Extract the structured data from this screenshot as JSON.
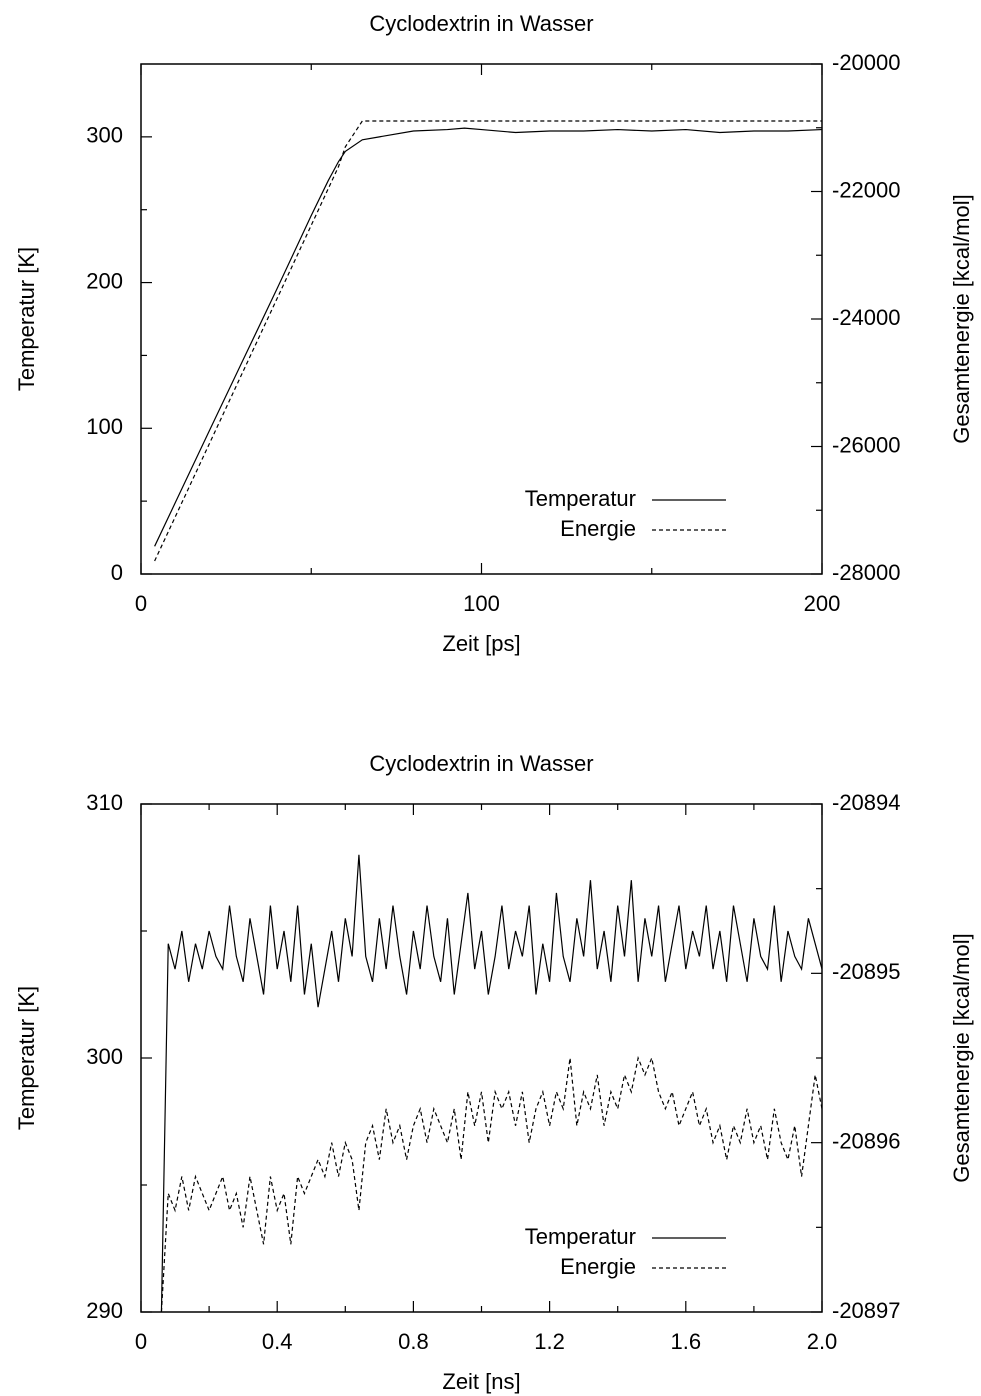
{
  "chart_data": [
    {
      "type": "line",
      "title": "Cyclodextrin in Wasser",
      "xlabel": "Zeit [ps]",
      "ylabel": "Temperatur [K]",
      "y2label": "Gesamtenergie [kcal/mol]",
      "x": [
        4,
        10,
        20,
        30,
        40,
        50,
        55,
        58,
        60,
        65,
        70,
        80,
        90,
        95,
        100,
        110,
        120,
        130,
        140,
        150,
        160,
        170,
        180,
        190,
        200
      ],
      "series": [
        {
          "name": "Temperatur",
          "color": "#000000",
          "dash": "solid",
          "values": [
            19,
            48.6,
            98,
            147,
            196,
            246,
            270,
            283,
            290,
            298,
            300,
            304,
            305,
            306,
            305,
            303,
            304,
            304,
            305,
            304,
            305,
            303,
            304,
            304,
            305
          ]
        },
        {
          "name": "Energie",
          "color": "#000000",
          "dash": "dashed",
          "axis": "y2",
          "values": [
            -27796,
            -27110,
            -25965,
            -24820,
            -23675,
            -22530,
            -21955,
            -21610,
            -21300,
            -20894,
            -20894,
            -20894,
            -20894,
            -20894,
            -20894,
            -20894,
            -20894,
            -20894,
            -20894,
            -20894,
            -20894,
            -20894,
            -20894,
            -20894,
            -20894
          ]
        }
      ],
      "xlim": [
        0,
        200
      ],
      "xticks": [
        0,
        100,
        200
      ],
      "xminorticks": [
        50,
        150
      ],
      "ylim": [
        0,
        350
      ],
      "yticks": [
        0,
        100,
        200,
        300
      ],
      "yminorticks": [
        50,
        150,
        250
      ],
      "y2lim": [
        -28000,
        -20000
      ],
      "y2ticks": [
        -28000,
        -26000,
        -24000,
        -22000,
        -20000
      ],
      "y2minorticks": [
        -27000,
        -25000,
        -23000,
        -21000
      ],
      "grid": false,
      "legend": "lower right"
    },
    {
      "type": "line",
      "title": "Cyclodextrin in Wasser",
      "xlabel": "Zeit [ns]",
      "ylabel": "Temperatur [K]",
      "y2label": "Gesamtenergie [kcal/mol]",
      "x": [
        0.06,
        0.08,
        0.1,
        0.12,
        0.14,
        0.16,
        0.18,
        0.2,
        0.22,
        0.24,
        0.26,
        0.28,
        0.3,
        0.32,
        0.34,
        0.36,
        0.38,
        0.4,
        0.42,
        0.44,
        0.46,
        0.48,
        0.5,
        0.52,
        0.54,
        0.56,
        0.58,
        0.6,
        0.62,
        0.64,
        0.66,
        0.68,
        0.7,
        0.72,
        0.74,
        0.76,
        0.78,
        0.8,
        0.82,
        0.84,
        0.86,
        0.88,
        0.9,
        0.92,
        0.94,
        0.96,
        0.98,
        1.0,
        1.02,
        1.04,
        1.06,
        1.08,
        1.1,
        1.12,
        1.14,
        1.16,
        1.18,
        1.2,
        1.22,
        1.24,
        1.26,
        1.28,
        1.3,
        1.32,
        1.34,
        1.36,
        1.38,
        1.4,
        1.42,
        1.44,
        1.46,
        1.48,
        1.5,
        1.52,
        1.54,
        1.56,
        1.58,
        1.6,
        1.62,
        1.64,
        1.66,
        1.68,
        1.7,
        1.72,
        1.74,
        1.76,
        1.78,
        1.8,
        1.82,
        1.84,
        1.86,
        1.88,
        1.9,
        1.92,
        1.94,
        1.96,
        1.98,
        2.0
      ],
      "series": [
        {
          "name": "Temperatur",
          "color": "#000000",
          "dash": "solid",
          "values": [
            290,
            304.5,
            303.5,
            305,
            303,
            304.5,
            303.5,
            305,
            304,
            303.5,
            306,
            304,
            303,
            305.5,
            304,
            302.5,
            306,
            303.5,
            305,
            303,
            306,
            302.5,
            304.5,
            302,
            303.5,
            305,
            303,
            305.5,
            304,
            308,
            304,
            303,
            305.5,
            303.5,
            306,
            304,
            302.5,
            305,
            303.5,
            306,
            304,
            303,
            305.5,
            302.5,
            304.5,
            306.5,
            303.5,
            305,
            302.5,
            304,
            306,
            303.5,
            305,
            304,
            306,
            302.5,
            304.5,
            303,
            306.5,
            304,
            303,
            305.5,
            304,
            307,
            303.5,
            305,
            303,
            306,
            304,
            307,
            303,
            305.5,
            304,
            306,
            303,
            304.5,
            306,
            303.5,
            305,
            304,
            306,
            303.5,
            305,
            303,
            306,
            304.5,
            303,
            305.5,
            304,
            303.5,
            306,
            303,
            305,
            304,
            303.5,
            305.5,
            304.5,
            303.5
          ]
        },
        {
          "name": "Energie",
          "color": "#000000",
          "dash": "dashed",
          "axis": "y2",
          "values": [
            -20897,
            -20896.3,
            -20896.4,
            -20896.2,
            -20896.4,
            -20896.2,
            -20896.3,
            -20896.4,
            -20896.3,
            -20896.2,
            -20896.4,
            -20896.3,
            -20896.5,
            -20896.2,
            -20896.4,
            -20896.6,
            -20896.2,
            -20896.4,
            -20896.3,
            -20896.6,
            -20896.2,
            -20896.3,
            -20896.2,
            -20896.1,
            -20896.2,
            -20896.0,
            -20896.2,
            -20896.0,
            -20896.1,
            -20896.4,
            -20896.0,
            -20895.9,
            -20896.1,
            -20895.8,
            -20896.0,
            -20895.9,
            -20896.1,
            -20895.9,
            -20895.8,
            -20896.0,
            -20895.8,
            -20895.9,
            -20896.0,
            -20895.8,
            -20896.1,
            -20895.7,
            -20895.9,
            -20895.7,
            -20896.0,
            -20895.7,
            -20895.8,
            -20895.7,
            -20895.9,
            -20895.7,
            -20896.0,
            -20895.8,
            -20895.7,
            -20895.9,
            -20895.7,
            -20895.8,
            -20895.5,
            -20895.9,
            -20895.7,
            -20895.8,
            -20895.6,
            -20895.9,
            -20895.7,
            -20895.8,
            -20895.6,
            -20895.7,
            -20895.5,
            -20895.6,
            -20895.5,
            -20895.7,
            -20895.8,
            -20895.7,
            -20895.9,
            -20895.8,
            -20895.7,
            -20895.9,
            -20895.8,
            -20896.0,
            -20895.9,
            -20896.1,
            -20895.9,
            -20896.0,
            -20895.8,
            -20896.0,
            -20895.9,
            -20896.1,
            -20895.8,
            -20896.0,
            -20896.1,
            -20895.9,
            -20896.2,
            -20895.9,
            -20895.6,
            -20895.8
          ]
        }
      ],
      "xlim": [
        0,
        2
      ],
      "xticks": [
        0,
        0.4,
        0.8,
        1.2,
        1.6,
        {
          "value": 2,
          "label": "2.0"
        }
      ],
      "xminorticks": [
        0.2,
        0.6,
        1.0,
        1.4,
        1.8
      ],
      "ylim": [
        290,
        310
      ],
      "yticks": [
        290,
        300,
        310
      ],
      "yminorticks": [
        295,
        305
      ],
      "y2lim": [
        -20897,
        -20894
      ],
      "y2ticks": [
        -20897,
        -20896,
        -20895,
        -20894
      ],
      "y2minorticks": [
        -20896.5,
        -20895.5,
        -20894.5
      ],
      "grid": false,
      "legend": "lower right"
    }
  ]
}
